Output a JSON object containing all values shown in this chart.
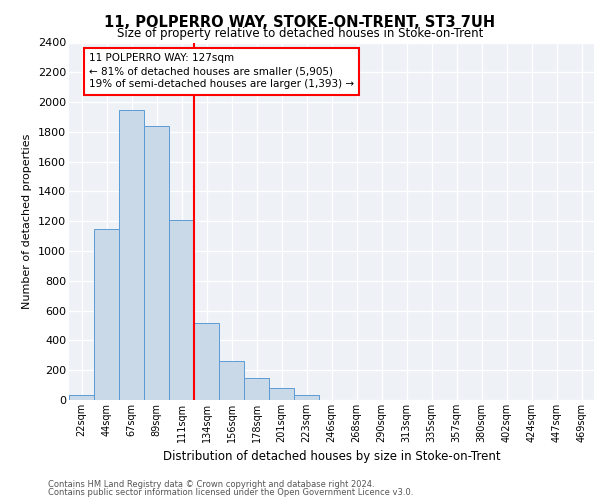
{
  "title": "11, POLPERRO WAY, STOKE-ON-TRENT, ST3 7UH",
  "subtitle": "Size of property relative to detached houses in Stoke-on-Trent",
  "xlabel": "Distribution of detached houses by size in Stoke-on-Trent",
  "ylabel": "Number of detached properties",
  "bin_labels": [
    "22sqm",
    "44sqm",
    "67sqm",
    "89sqm",
    "111sqm",
    "134sqm",
    "156sqm",
    "178sqm",
    "201sqm",
    "223sqm",
    "246sqm",
    "268sqm",
    "290sqm",
    "313sqm",
    "335sqm",
    "357sqm",
    "380sqm",
    "402sqm",
    "424sqm",
    "447sqm",
    "469sqm"
  ],
  "bar_values": [
    35,
    1150,
    1950,
    1840,
    1210,
    520,
    265,
    150,
    80,
    35,
    0,
    0,
    0,
    0,
    0,
    0,
    0,
    0,
    0,
    0,
    0
  ],
  "bar_color": "#c9d9e8",
  "bar_edge_color": "#5b9bd5",
  "annotation_text": "11 POLPERRO WAY: 127sqm\n← 81% of detached houses are smaller (5,905)\n19% of semi-detached houses are larger (1,393) →",
  "vline_color": "red",
  "vline_x_index": 4.5,
  "ylim": [
    0,
    2400
  ],
  "yticks": [
    0,
    200,
    400,
    600,
    800,
    1000,
    1200,
    1400,
    1600,
    1800,
    2000,
    2200,
    2400
  ],
  "footer_line1": "Contains HM Land Registry data © Crown copyright and database right 2024.",
  "footer_line2": "Contains public sector information licensed under the Open Government Licence v3.0.",
  "plot_bg_color": "#eef2f7"
}
